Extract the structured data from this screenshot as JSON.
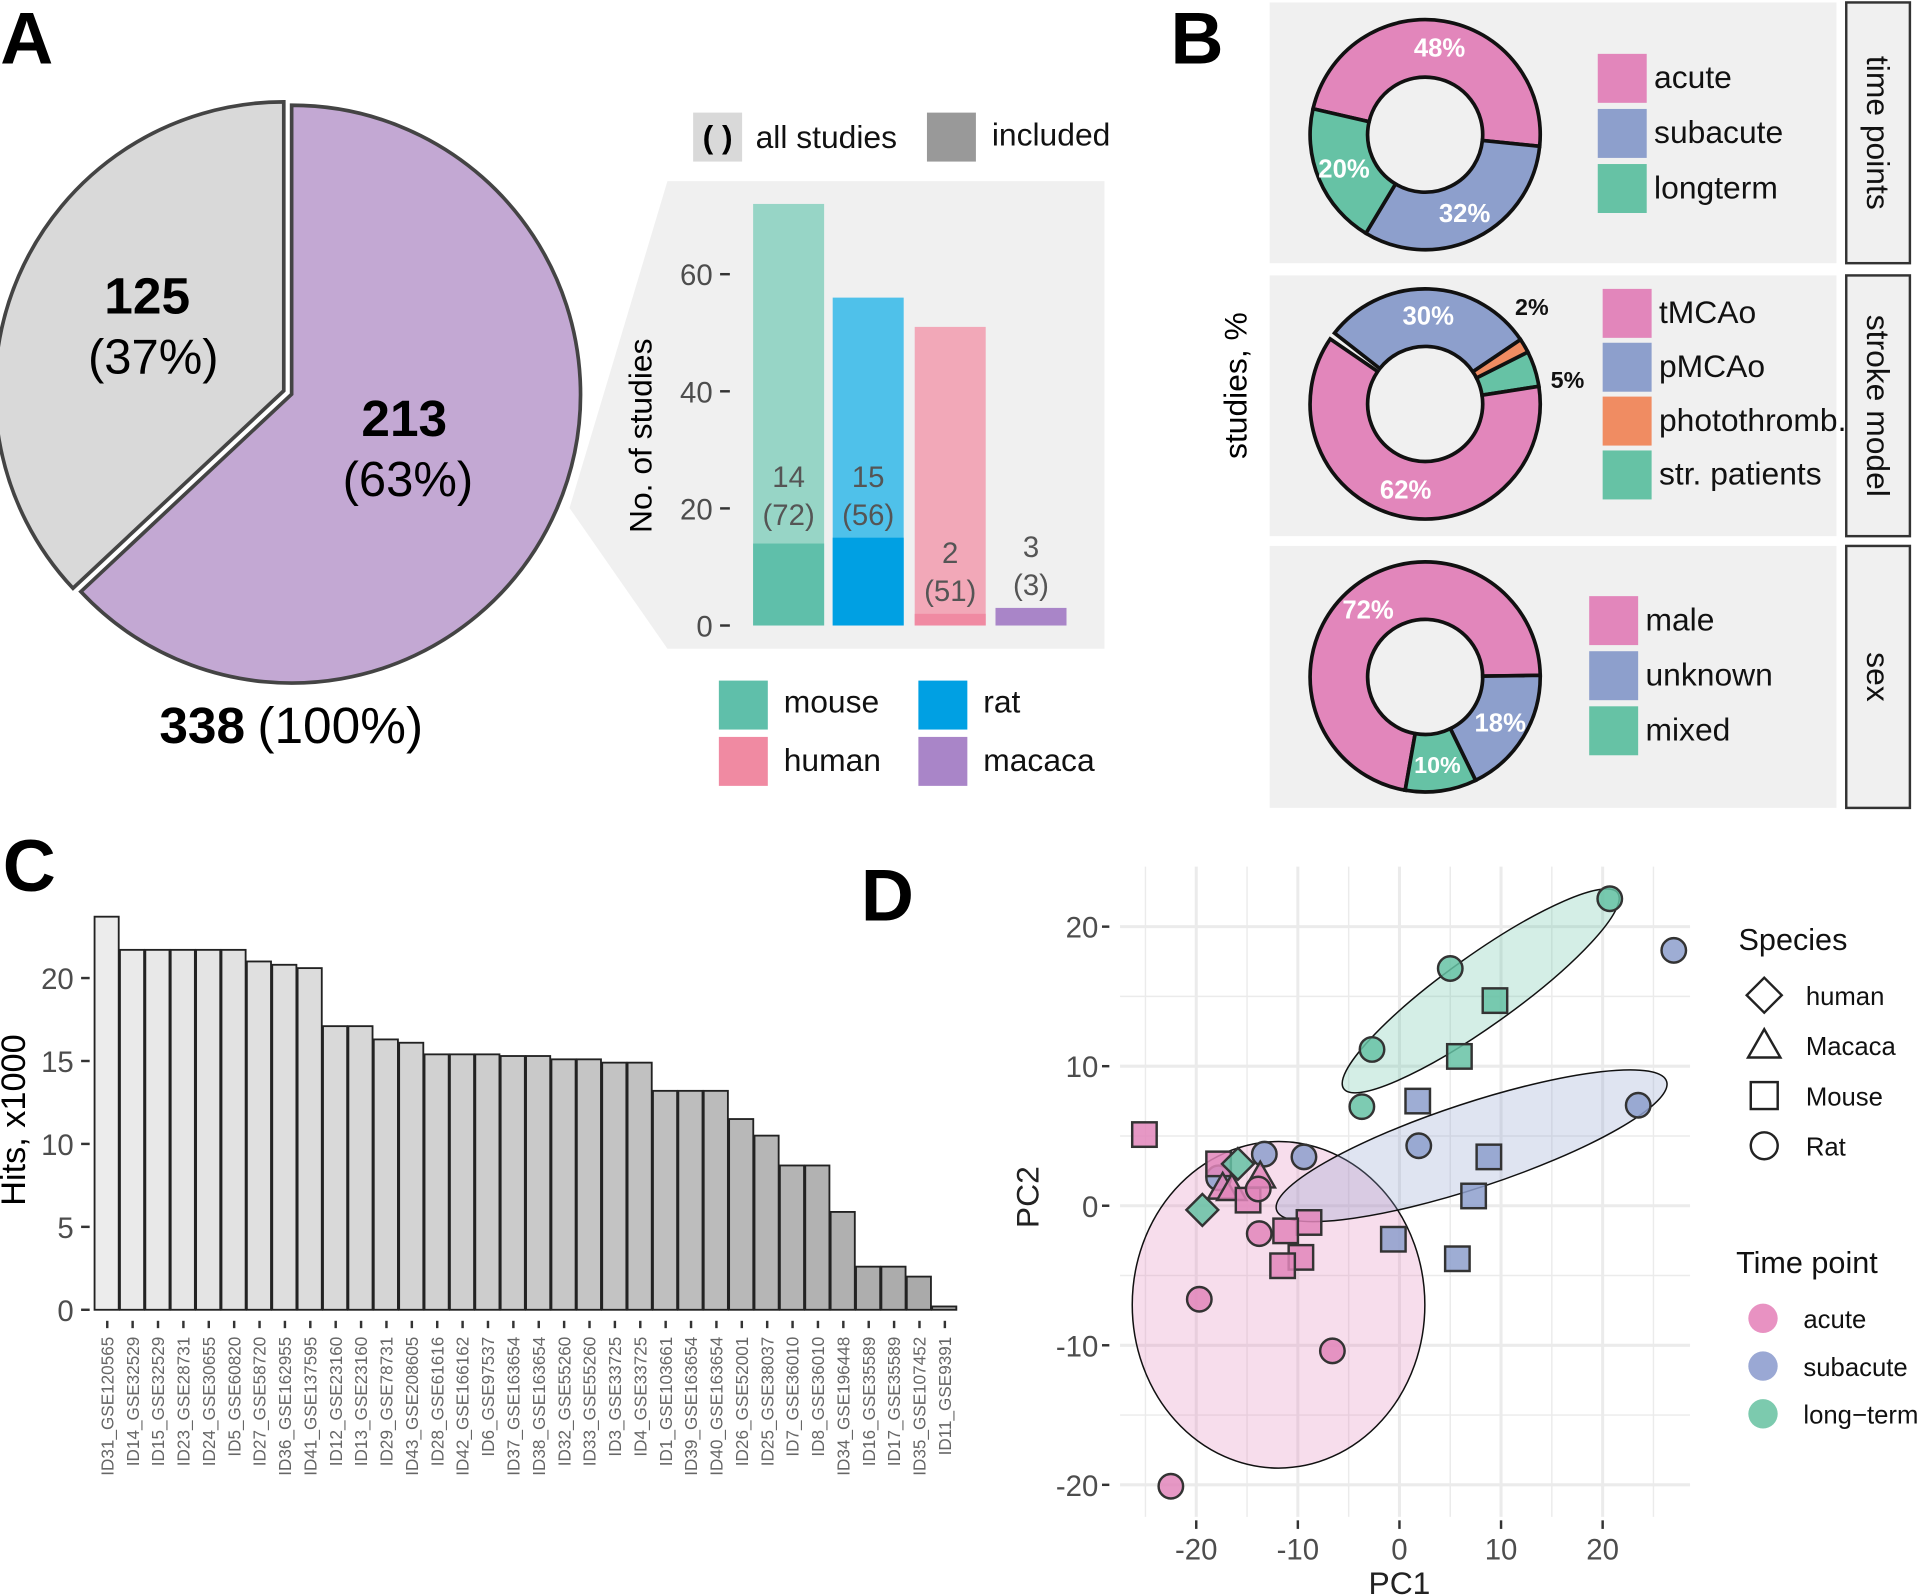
{
  "panel_letters": {
    "a": "A",
    "b": "B",
    "c": "C",
    "d": "D"
  },
  "chart_data": [
    {
      "id": "A-pie",
      "type": "pie",
      "slices": [
        {
          "label": "125",
          "pct": "(37%)",
          "value": 125,
          "color": "#d9d9d9"
        },
        {
          "label": "213",
          "pct": "(63%)",
          "value": 213,
          "color": "#c3a8d3"
        }
      ],
      "total": {
        "label": "338",
        "pct": "(100%)"
      }
    },
    {
      "id": "A-bars",
      "type": "bar",
      "ylabel": "No. of studies",
      "yticks": [
        0,
        20,
        40,
        60
      ],
      "ylim": [
        0,
        75
      ],
      "legend_top": {
        "all": "all studies",
        "all_symbol": "( )",
        "included": "included"
      },
      "categories": [
        "mouse",
        "rat",
        "human",
        "macaca"
      ],
      "all_studies": [
        72,
        56,
        51,
        3
      ],
      "included": [
        14,
        15,
        2,
        3
      ],
      "colors_included": [
        "#5fbfaa",
        "#00a0e3",
        "#f08aa2",
        "#a985c8"
      ],
      "colors_all": [
        "#97d5c6",
        "#4fc1ea",
        "#f2a8b8",
        "#a985c8"
      ],
      "labels_included": [
        "14",
        "15",
        "2",
        "3"
      ],
      "labels_all": [
        "(72)",
        "(56)",
        "(51)",
        "(3)"
      ]
    },
    {
      "id": "B-donuts",
      "type": "pie",
      "ylabel": "studies, %",
      "facets": [
        {
          "strip": "time points",
          "start_deg": -77,
          "slices": [
            {
              "name": "acute",
              "pct": 48,
              "label": "48%",
              "color": "#e286bb"
            },
            {
              "name": "subacute",
              "pct": 32,
              "label": "32%",
              "color": "#8d9fcc"
            },
            {
              "name": "longterm",
              "pct": 20,
              "label": "20%",
              "color": "#66c2a5"
            }
          ]
        },
        {
          "strip": "stroke model",
          "start_deg": -52,
          "slices": [
            {
              "name": "pMCAo",
              "pct": 30,
              "label": "30%",
              "color": "#8d9fcc"
            },
            {
              "name": "photothromb.",
              "pct": 2,
              "label": "2%",
              "color": "#f08c62"
            },
            {
              "name": "str. patients",
              "pct": 5,
              "label": "5%",
              "color": "#66c2a5"
            },
            {
              "name": "tMCAo",
              "pct": 62,
              "label": "62%",
              "color": "#e286bb"
            }
          ],
          "legend_order": [
            "tMCAo",
            "pMCAo",
            "photothromb.",
            "str. patients"
          ]
        },
        {
          "strip": "sex",
          "start_deg": -170,
          "slices": [
            {
              "name": "male",
              "pct": 72,
              "label": "72%",
              "color": "#e286bb"
            },
            {
              "name": "unknown",
              "pct": 18,
              "label": "18%",
              "color": "#8d9fcc"
            },
            {
              "name": "mixed",
              "pct": 10,
              "label": "10%",
              "color": "#66c2a5"
            }
          ]
        }
      ]
    },
    {
      "id": "C-hits",
      "type": "bar",
      "ylabel": "Hits, x1000",
      "yticks": [
        0,
        5,
        10,
        15,
        20
      ],
      "categories": [
        "ID31_GSE120565",
        "ID14_GSE32529",
        "ID15_GSE32529",
        "ID23_GSE28731",
        "ID24_GSE30655",
        "ID5_GSE60820",
        "ID27_GSE58720",
        "ID36_GSE162955",
        "ID41_GSE137595",
        "ID12_GSE23160",
        "ID13_GSE23160",
        "ID29_GSE78731",
        "ID43_GSE208605",
        "ID28_GSE61616",
        "ID42_GSE166162",
        "ID6_GSE97537",
        "ID37_GSE163654",
        "ID38_GSE163654",
        "ID32_GSE55260",
        "ID33_GSE55260",
        "ID3_GSE33725",
        "ID4_GSE33725",
        "ID1_GSE103661",
        "ID39_GSE163654",
        "ID40_GSE163654",
        "ID26_GSE52001",
        "ID25_GSE38037",
        "ID7_GSE36010",
        "ID8_GSE36010",
        "ID34_GSE196448",
        "ID16_GSE35589",
        "ID17_GSE35589",
        "ID35_GSE107452",
        "ID11_GSE9391"
      ],
      "values": [
        23.7,
        21.7,
        21.7,
        21.7,
        21.7,
        21.7,
        21.0,
        20.8,
        20.6,
        17.1,
        17.1,
        16.3,
        16.1,
        15.4,
        15.4,
        15.4,
        15.3,
        15.3,
        15.1,
        15.1,
        14.9,
        14.9,
        13.2,
        13.2,
        13.2,
        11.5,
        10.5,
        8.7,
        8.7,
        5.9,
        2.6,
        2.6,
        2.0,
        0.2
      ]
    },
    {
      "id": "D-pca",
      "type": "scatter",
      "xlabel": "PC1",
      "ylabel": "PC2",
      "xticks": [
        -20,
        -10,
        0,
        10,
        20
      ],
      "yticks": [
        -20,
        -10,
        0,
        10,
        20
      ],
      "xlim": [
        -28,
        29
      ],
      "ylim": [
        -22,
        24
      ],
      "grid": true,
      "legend_species": {
        "title": "Species",
        "items": [
          {
            "name": "human",
            "shape": "diamond"
          },
          {
            "name": "Macaca",
            "shape": "triangle"
          },
          {
            "name": "Mouse",
            "shape": "square"
          },
          {
            "name": "Rat",
            "shape": "circle"
          }
        ]
      },
      "legend_time": {
        "title": "Time point",
        "items": [
          {
            "name": "acute",
            "color": "#e892c2"
          },
          {
            "name": "subacute",
            "color": "#9aa8d4"
          },
          {
            "name": "long−term",
            "color": "#7ccaae"
          }
        ]
      },
      "ellipses": [
        {
          "group": "acute",
          "center": [
            -11.9,
            -7.1
          ],
          "axis1": [
            14.4,
            0
          ],
          "axis2": [
            0,
            11.7
          ]
        },
        {
          "group": "subacute",
          "center": [
            7.1,
            4.3
          ],
          "axis1": [
            19.2,
            4.6
          ],
          "axis2": [
            1.2,
            -2.9
          ]
        },
        {
          "group": "long-term",
          "center": [
            8.0,
            15.4
          ],
          "axis1": [
            13.5,
            7.0
          ],
          "axis2": [
            1.9,
            -2.1
          ]
        }
      ],
      "points": [
        {
          "x": 20.7,
          "y": 22.0,
          "shape": "circle",
          "group": "long-term"
        },
        {
          "x": 27.0,
          "y": 18.3,
          "shape": "circle",
          "group": "subacute"
        },
        {
          "x": 5.0,
          "y": 17.0,
          "shape": "circle",
          "group": "long-term"
        },
        {
          "x": 9.4,
          "y": 14.7,
          "shape": "square",
          "group": "long-term"
        },
        {
          "x": -2.7,
          "y": 11.2,
          "shape": "circle",
          "group": "long-term"
        },
        {
          "x": 5.9,
          "y": 10.7,
          "shape": "square",
          "group": "long-term"
        },
        {
          "x": -3.7,
          "y": 7.1,
          "shape": "circle",
          "group": "long-term"
        },
        {
          "x": 1.8,
          "y": 7.5,
          "shape": "square",
          "group": "subacute"
        },
        {
          "x": 23.5,
          "y": 7.2,
          "shape": "circle",
          "group": "subacute"
        },
        {
          "x": 1.9,
          "y": 4.3,
          "shape": "circle",
          "group": "subacute"
        },
        {
          "x": 8.8,
          "y": 3.5,
          "shape": "square",
          "group": "subacute"
        },
        {
          "x": 7.3,
          "y": 0.7,
          "shape": "square",
          "group": "subacute"
        },
        {
          "x": -0.6,
          "y": -2.4,
          "shape": "square",
          "group": "subacute"
        },
        {
          "x": 5.7,
          "y": -3.8,
          "shape": "square",
          "group": "subacute"
        },
        {
          "x": -25.1,
          "y": 5.1,
          "shape": "square",
          "group": "acute"
        },
        {
          "x": -17.8,
          "y": 2.0,
          "shape": "circle",
          "group": "subacute"
        },
        {
          "x": -17.8,
          "y": 3.0,
          "shape": "square",
          "group": "acute"
        },
        {
          "x": -13.3,
          "y": 3.7,
          "shape": "circle",
          "group": "subacute"
        },
        {
          "x": -9.4,
          "y": 3.5,
          "shape": "circle",
          "group": "subacute"
        },
        {
          "x": -17.4,
          "y": 1.3,
          "shape": "triangle",
          "group": "acute"
        },
        {
          "x": -16.5,
          "y": 1.2,
          "shape": "triangle",
          "group": "acute"
        },
        {
          "x": -13.7,
          "y": 2.1,
          "shape": "triangle",
          "group": "acute"
        },
        {
          "x": -15.9,
          "y": 3.0,
          "shape": "diamond",
          "group": "long-term"
        },
        {
          "x": -14.9,
          "y": 0.4,
          "shape": "square",
          "group": "acute"
        },
        {
          "x": -13.9,
          "y": 1.2,
          "shape": "circle",
          "group": "acute"
        },
        {
          "x": -19.4,
          "y": -0.3,
          "shape": "diamond",
          "group": "long-term"
        },
        {
          "x": -8.9,
          "y": -1.2,
          "shape": "square",
          "group": "acute"
        },
        {
          "x": -11.2,
          "y": -1.8,
          "shape": "square",
          "group": "acute"
        },
        {
          "x": -13.8,
          "y": -2.0,
          "shape": "circle",
          "group": "acute"
        },
        {
          "x": -9.7,
          "y": -3.7,
          "shape": "square",
          "group": "acute"
        },
        {
          "x": -11.5,
          "y": -4.3,
          "shape": "square",
          "group": "acute"
        },
        {
          "x": -19.7,
          "y": -6.7,
          "shape": "circle",
          "group": "acute"
        },
        {
          "x": -6.6,
          "y": -10.4,
          "shape": "circle",
          "group": "acute"
        },
        {
          "x": -22.5,
          "y": -20.1,
          "shape": "circle",
          "group": "acute"
        }
      ],
      "group_colors": {
        "acute": "#e286bb",
        "subacute": "#8d9fcc",
        "long-term": "#66c2a5"
      }
    }
  ]
}
